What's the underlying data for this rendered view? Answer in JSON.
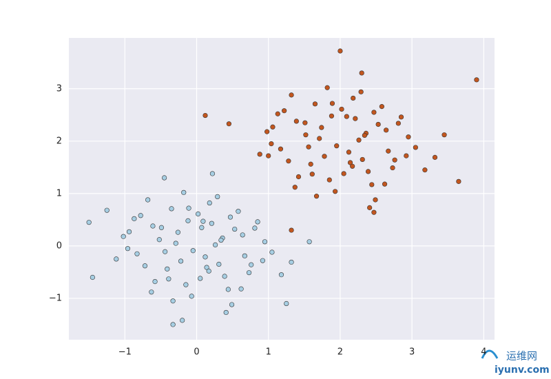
{
  "chart_data": {
    "type": "scatter",
    "series": [
      {
        "color": "#a6cee3",
        "x": [
          -0.52,
          0.31,
          -0.12,
          0.64,
          -0.83,
          0.05,
          0.47,
          -0.29,
          0.92,
          -0.61,
          0.18,
          -0.05,
          0.73,
          -0.94,
          0.36,
          -0.41,
          0.12,
          0.58,
          -0.72,
          0.26,
          -0.18,
          1.05,
          -1.12,
          0.44,
          -0.35,
          0.81,
          -0.07,
          0.21,
          -0.58,
          0.67,
          -0.26,
          0.02,
          0.39,
          -0.87,
          0.95,
          -0.44,
          0.14,
          -0.68,
          0.53,
          -0.15,
          0.29,
          -1.02,
          0.76,
          -0.33,
          0.09,
          0.62,
          -0.49,
          1.18,
          -0.78,
          0.34,
          -0.22,
          0.49,
          -0.96,
          0.17,
          -0.11,
          0.85,
          -0.63,
          0.41,
          -0.39,
          1.32,
          -1.25,
          0.07,
          -1.5,
          -0.33,
          -0.2,
          1.57,
          1.25,
          -1.45,
          -0.45,
          0.22
        ],
        "values": [
          0.12,
          -0.35,
          0.48,
          0.21,
          -0.15,
          -0.62,
          0.55,
          0.05,
          -0.28,
          0.38,
          0.82,
          -0.09,
          -0.51,
          0.27,
          0.15,
          -0.44,
          -0.21,
          0.66,
          -0.38,
          0.02,
          1.02,
          -0.12,
          -0.25,
          -0.83,
          0.71,
          0.34,
          -0.96,
          0.43,
          -0.68,
          -0.19,
          0.26,
          0.61,
          -0.58,
          0.52,
          0.08,
          -0.11,
          -0.41,
          0.88,
          0.32,
          -0.74,
          0.94,
          0.18,
          -0.36,
          -1.05,
          0.47,
          -0.82,
          0.35,
          -0.55,
          0.58,
          0.11,
          -0.29,
          -1.12,
          -0.05,
          -0.48,
          0.72,
          0.46,
          -0.88,
          -1.27,
          -0.63,
          -0.31,
          0.68,
          0.35,
          0.45,
          -1.5,
          -1.42,
          0.08,
          -1.1,
          -0.6,
          1.3,
          1.38
        ]
      },
      {
        "color": "#c2561f",
        "x": [
          1.52,
          2.31,
          1.88,
          2.64,
          1.17,
          2.05,
          2.47,
          1.71,
          2.92,
          1.39,
          2.18,
          1.95,
          2.73,
          1.06,
          2.36,
          1.59,
          2.12,
          2.58,
          1.28,
          2.26,
          1.82,
          3.05,
          0.88,
          2.44,
          1.65,
          2.81,
          1.93,
          2.21,
          1.42,
          2.67,
          1.74,
          2.02,
          2.39,
          1.13,
          2.95,
          1.56,
          2.14,
          1.32,
          2.53,
          1.85,
          2.29,
          0.98,
          2.76,
          1.67,
          2.09,
          2.62,
          1.51,
          3.18,
          1.22,
          2.34,
          1.78,
          2.49,
          1.04,
          2.17,
          1.89,
          2.85,
          1.37,
          2.41,
          1.61,
          3.32,
          3.9,
          2.0,
          0.12,
          3.65,
          1.32,
          2.47,
          0.45,
          3.45,
          2.3,
          1.0
        ],
        "values": [
          2.12,
          1.65,
          2.48,
          2.21,
          1.85,
          1.38,
          2.55,
          2.05,
          1.72,
          2.38,
          2.82,
          1.91,
          1.49,
          2.27,
          2.15,
          1.56,
          1.79,
          2.66,
          1.62,
          2.02,
          3.02,
          1.88,
          1.75,
          1.17,
          2.71,
          2.34,
          1.04,
          2.43,
          1.32,
          1.81,
          2.26,
          2.61,
          1.42,
          2.52,
          2.08,
          1.89,
          1.59,
          2.88,
          2.32,
          1.26,
          2.94,
          2.18,
          1.64,
          0.95,
          2.47,
          1.18,
          2.35,
          1.45,
          2.58,
          2.11,
          1.71,
          0.88,
          1.95,
          1.52,
          2.72,
          2.46,
          1.12,
          0.73,
          1.37,
          1.69,
          3.17,
          3.72,
          2.49,
          1.23,
          0.3,
          0.64,
          2.33,
          2.12,
          3.3,
          1.72
        ]
      }
    ],
    "xlim": [
      -1.78,
      4.15
    ],
    "ylim": [
      -1.79,
      3.97
    ],
    "xticks": [
      {
        "value": -1,
        "label": "−1"
      },
      0,
      1,
      2,
      3,
      4
    ],
    "yticks": [
      {
        "value": -1,
        "label": "−1"
      },
      0,
      1,
      2,
      3
    ],
    "grid": true
  },
  "watermark": {
    "title": "运维网",
    "url": "iyunv.com"
  }
}
